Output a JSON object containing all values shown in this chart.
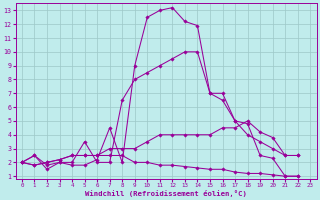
{
  "xlabel": "Windchill (Refroidissement éolien,°C)",
  "xlim": [
    -0.5,
    23.5
  ],
  "ylim": [
    0.8,
    13.5
  ],
  "xticks": [
    0,
    1,
    2,
    3,
    4,
    5,
    6,
    7,
    8,
    9,
    10,
    11,
    12,
    13,
    14,
    15,
    16,
    17,
    18,
    19,
    20,
    21,
    22,
    23
  ],
  "yticks": [
    1,
    2,
    3,
    4,
    5,
    6,
    7,
    8,
    9,
    10,
    11,
    12,
    13
  ],
  "bg_color": "#c0ecec",
  "grid_color": "#9dc8c8",
  "line_color": "#990099",
  "lines": [
    {
      "x": [
        0,
        1,
        2,
        3,
        4,
        5,
        6,
        7,
        8,
        9,
        10,
        11,
        12,
        13,
        14,
        15,
        16,
        17,
        18,
        19,
        20,
        21,
        22
      ],
      "y": [
        2,
        2.5,
        1.5,
        2,
        1.8,
        1.8,
        2.2,
        4.5,
        2,
        9,
        12.5,
        13,
        13.2,
        12.2,
        11.9,
        7,
        7,
        5,
        4.8,
        2.5,
        2.3,
        1,
        1
      ]
    },
    {
      "x": [
        0,
        1,
        2,
        3,
        4,
        5,
        6,
        7,
        8,
        9,
        10,
        11,
        12,
        13,
        14,
        15,
        16,
        17,
        18,
        19,
        20,
        21,
        22
      ],
      "y": [
        2,
        2.5,
        1.8,
        2,
        2,
        3.5,
        2,
        2,
        6.5,
        8,
        8.5,
        9,
        9.5,
        10,
        10,
        7,
        6.5,
        5,
        4,
        3.5,
        3,
        2.5,
        2.5
      ]
    },
    {
      "x": [
        0,
        1,
        2,
        3,
        4,
        5,
        6,
        7,
        8,
        9,
        10,
        11,
        12,
        13,
        14,
        15,
        16,
        17,
        18,
        19,
        20,
        21,
        22
      ],
      "y": [
        2,
        1.8,
        2,
        2.2,
        2.5,
        2.5,
        2.5,
        3,
        3,
        3,
        3.5,
        4,
        4,
        4,
        4,
        4,
        4.5,
        4.5,
        5,
        4.2,
        3.8,
        2.5,
        2.5
      ]
    },
    {
      "x": [
        0,
        1,
        2,
        3,
        4,
        5,
        6,
        7,
        8,
        9,
        10,
        11,
        12,
        13,
        14,
        15,
        16,
        17,
        18,
        19,
        20,
        21,
        22
      ],
      "y": [
        2,
        1.8,
        2,
        2.2,
        2.5,
        2.5,
        2.5,
        2.5,
        2.5,
        2,
        2,
        1.8,
        1.8,
        1.7,
        1.6,
        1.5,
        1.5,
        1.3,
        1.2,
        1.2,
        1.1,
        1,
        1
      ]
    }
  ]
}
